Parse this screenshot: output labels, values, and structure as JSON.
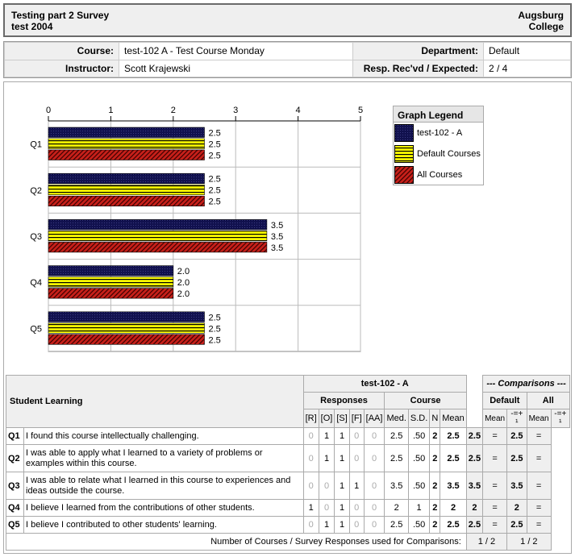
{
  "header": {
    "title_line1": "Testing part 2 Survey",
    "title_line2": "test 2004",
    "org_line1": "Augsburg",
    "org_line2": "College"
  },
  "info": {
    "course_label": "Course:",
    "course_value": "test-102 A - Test Course Monday",
    "department_label": "Department:",
    "department_value": "Default",
    "instructor_label": "Instructor:",
    "instructor_value": "Scott Krajewski",
    "resp_label": "Resp. Rec'vd / Expected:",
    "resp_value": "2 / 4"
  },
  "legend": {
    "title": "Graph Legend",
    "items": [
      "test-102 - A",
      "Default Courses",
      "All Courses"
    ]
  },
  "colors": {
    "series1": "#11114e",
    "series2": "#ffff00",
    "series3": "#c8201a"
  },
  "chart_data": {
    "type": "bar",
    "orientation": "horizontal",
    "categories": [
      "Q1",
      "Q2",
      "Q3",
      "Q4",
      "Q5"
    ],
    "xlim": [
      0,
      5
    ],
    "xticks": [
      "0",
      "1",
      "2",
      "3",
      "4",
      "5"
    ],
    "series": [
      {
        "name": "test-102 - A",
        "values": [
          2.5,
          2.5,
          3.5,
          2.0,
          2.5
        ],
        "labels": [
          "2.5",
          "2.5",
          "3.5",
          "2.0",
          "2.5"
        ]
      },
      {
        "name": "Default Courses",
        "values": [
          2.5,
          2.5,
          3.5,
          2.0,
          2.5
        ],
        "labels": [
          "2.5",
          "2.5",
          "3.5",
          "2.0",
          "2.5"
        ]
      },
      {
        "name": "All Courses",
        "values": [
          2.5,
          2.5,
          3.5,
          2.0,
          2.5
        ],
        "labels": [
          "2.5",
          "2.5",
          "3.5",
          "2.0",
          "2.5"
        ]
      }
    ],
    "legend_position": "right",
    "grid": true
  },
  "table": {
    "section_title": "Student Learning",
    "course_header": "test-102 - A",
    "comparisons_header": "--- Comparisons ---",
    "responses_header": "Responses",
    "course_sub": "Course",
    "default_header": "Default",
    "all_header": "All",
    "cols": [
      "[R]",
      "[O]",
      "[S]",
      "[F]",
      "[AA]",
      "Med.",
      "S.D.",
      "N",
      "Mean",
      "Mean",
      "-=+ ¹",
      "Mean",
      "-=+ ¹"
    ],
    "rows": [
      {
        "q": "Q1",
        "text": "I found this course intellectually challenging.",
        "r": "0",
        "o": "1",
        "s": "1",
        "f": "0",
        "aa": "0",
        "med": "2.5",
        "sd": ".50",
        "n": "2",
        "mean": "2.5",
        "dmean": "2.5",
        "dcmp": "=",
        "amean": "2.5",
        "acmp": "="
      },
      {
        "q": "Q2",
        "text": "I was able to apply what I learned to a variety of problems or examples within this course.",
        "r": "0",
        "o": "1",
        "s": "1",
        "f": "0",
        "aa": "0",
        "med": "2.5",
        "sd": ".50",
        "n": "2",
        "mean": "2.5",
        "dmean": "2.5",
        "dcmp": "=",
        "amean": "2.5",
        "acmp": "="
      },
      {
        "q": "Q3",
        "text": "I was able to relate what I learned in this course to experiences and ideas outside the course.",
        "r": "0",
        "o": "0",
        "s": "1",
        "f": "1",
        "aa": "0",
        "med": "3.5",
        "sd": ".50",
        "n": "2",
        "mean": "3.5",
        "dmean": "3.5",
        "dcmp": "=",
        "amean": "3.5",
        "acmp": "="
      },
      {
        "q": "Q4",
        "text": "I believe I learned from the contributions of other students.",
        "r": "1",
        "o": "0",
        "s": "1",
        "f": "0",
        "aa": "0",
        "med": "2",
        "sd": "1",
        "n": "2",
        "mean": "2",
        "dmean": "2",
        "dcmp": "=",
        "amean": "2",
        "acmp": "="
      },
      {
        "q": "Q5",
        "text": "I believe I contributed to other students' learning.",
        "r": "0",
        "o": "1",
        "s": "1",
        "f": "0",
        "aa": "0",
        "med": "2.5",
        "sd": ".50",
        "n": "2",
        "mean": "2.5",
        "dmean": "2.5",
        "dcmp": "=",
        "amean": "2.5",
        "acmp": "="
      }
    ],
    "footer_label": "Number of Courses / Survey Responses used for Comparisons:",
    "footer_default": "1 / 2",
    "footer_all": "1 / 2"
  }
}
